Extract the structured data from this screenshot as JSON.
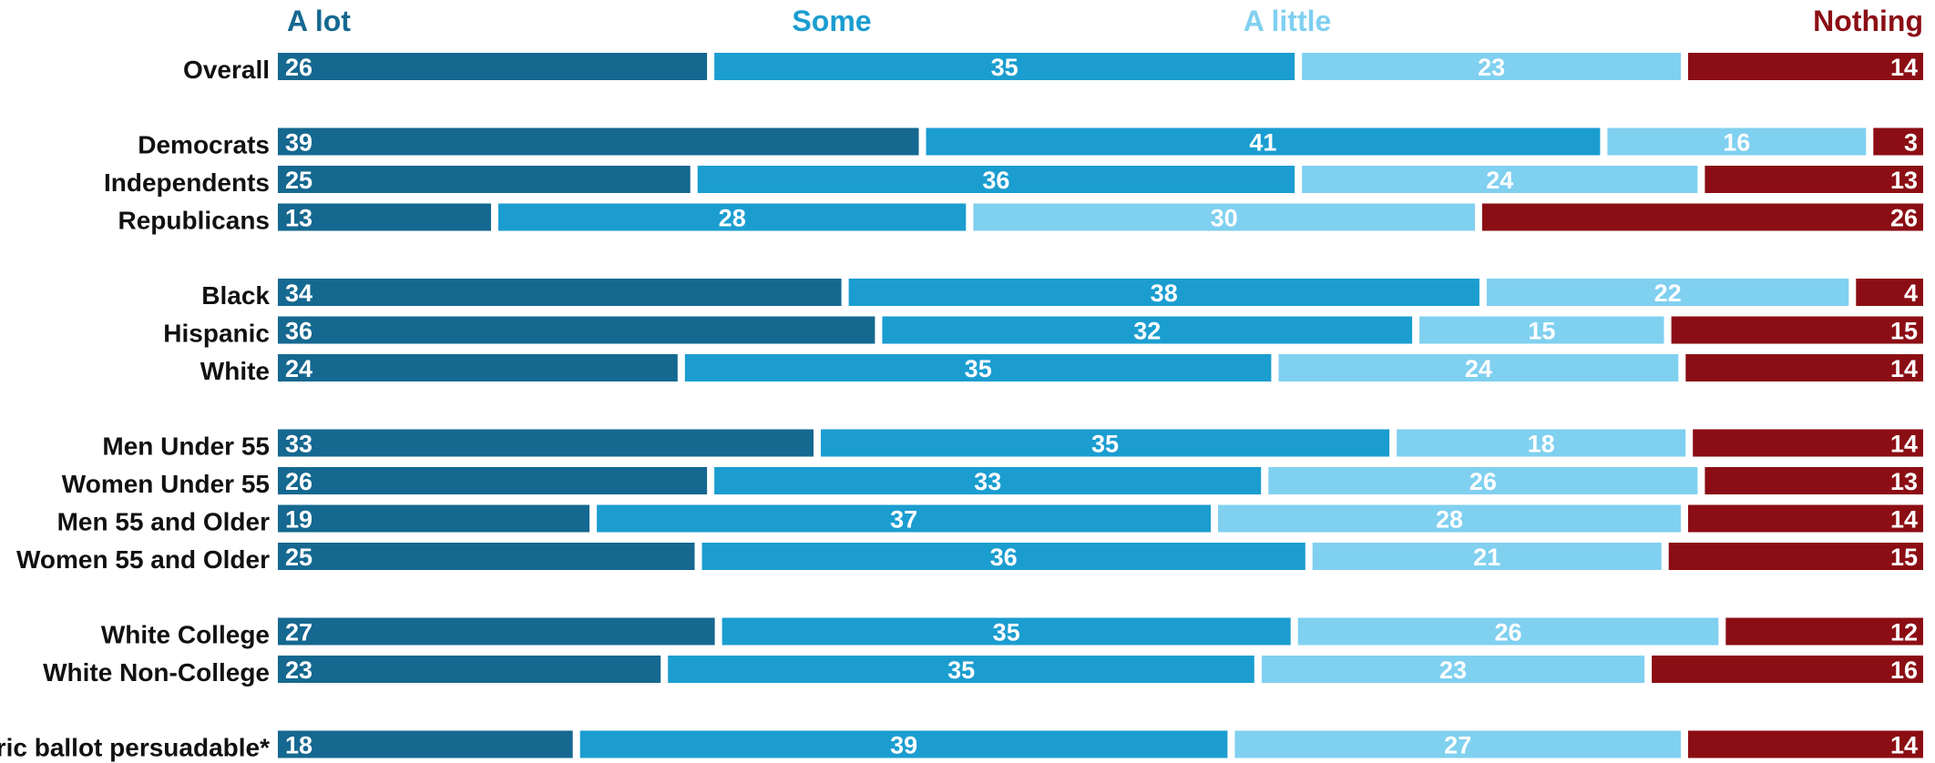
{
  "chart_data": {
    "type": "bar",
    "stacked": "100%",
    "orientation": "horizontal",
    "xlim": [
      0,
      100
    ],
    "legend_position": "top",
    "grid": false,
    "series": [
      {
        "name": "A lot",
        "color": "#156890"
      },
      {
        "name": "Some",
        "color": "#1b9dd0"
      },
      {
        "name": "A little",
        "color": "#80d0f0"
      },
      {
        "name": "Nothing",
        "color": "#8b0e14"
      }
    ],
    "categories": [
      "Overall",
      "Democrats",
      "Independents",
      "Republicans",
      "Black",
      "Hispanic",
      "White",
      "Men Under 55",
      "Women Under 55",
      "Men 55 and Older",
      "Women 55 and Older",
      "White College",
      "White Non-College",
      "Generic ballot persuadable*"
    ],
    "groups": [
      [
        0
      ],
      [
        1,
        2,
        3
      ],
      [
        4,
        5,
        6
      ],
      [
        7,
        8,
        9,
        10
      ],
      [
        11,
        12
      ],
      [
        13
      ]
    ],
    "values": [
      [
        26,
        35,
        23,
        14
      ],
      [
        39,
        41,
        16,
        3
      ],
      [
        25,
        36,
        24,
        13
      ],
      [
        13,
        28,
        30,
        26
      ],
      [
        34,
        38,
        22,
        4
      ],
      [
        36,
        32,
        15,
        15
      ],
      [
        24,
        35,
        24,
        14
      ],
      [
        33,
        35,
        18,
        14
      ],
      [
        26,
        33,
        26,
        13
      ],
      [
        19,
        37,
        28,
        14
      ],
      [
        25,
        36,
        21,
        15
      ],
      [
        27,
        35,
        26,
        12
      ],
      [
        23,
        35,
        23,
        16
      ],
      [
        18,
        39,
        27,
        14
      ]
    ]
  }
}
